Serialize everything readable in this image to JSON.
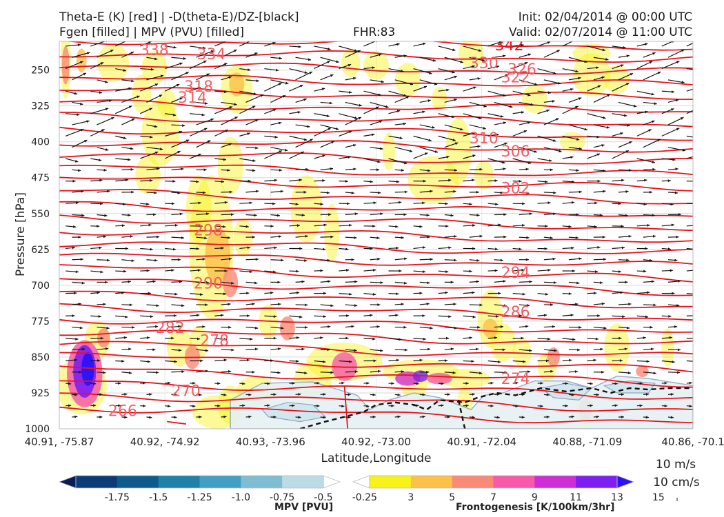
{
  "header": {
    "title_left_1": "Theta-E (K) [red] | -D(theta-E)/DZ-[black]",
    "title_left_2": "Fgen [filled] | MPV (PVU) [filled]",
    "fhr": "FHR:83",
    "init": "Init: 02/04/2014 @ 00:00 UTC",
    "valid": "Valid: 02/07/2014 @ 11:00 UTC"
  },
  "chart_data": {
    "type": "cross-section",
    "xlabel": "Latitude,Longitude",
    "ylabel": "Pressure [hPa]",
    "x_ticks": [
      "40.91, -75.87",
      "40.92, -74.92",
      "40.93, -73.96",
      "40.92, -73.00",
      "40.91, -72.04",
      "40.88, -71.09",
      "40.86, -70.1"
    ],
    "y_ticks": [
      250,
      325,
      400,
      475,
      550,
      625,
      700,
      775,
      850,
      925,
      1000
    ],
    "ylim": [
      1000,
      190
    ],
    "theta_e_contours": [
      {
        "label": 342,
        "at": [
          0.71,
          197
        ]
      },
      {
        "label": 338,
        "at": [
          0.15,
          207
        ]
      },
      {
        "label": 334,
        "at": [
          0.24,
          216
        ]
      },
      {
        "label": 330,
        "at": [
          0.67,
          235
        ]
      },
      {
        "label": 326,
        "at": [
          0.73,
          248
        ]
      },
      {
        "label": 322,
        "at": [
          0.72,
          264
        ]
      },
      {
        "label": 318,
        "at": [
          0.22,
          284
        ]
      },
      {
        "label": 314,
        "at": [
          0.21,
          307
        ]
      },
      {
        "label": 310,
        "at": [
          0.67,
          392
        ]
      },
      {
        "label": 306,
        "at": [
          0.72,
          419
        ]
      },
      {
        "label": 302,
        "at": [
          0.72,
          496
        ]
      },
      {
        "label": 298,
        "at": [
          0.235,
          584
        ]
      },
      {
        "label": 294,
        "at": [
          0.72,
          673
        ]
      },
      {
        "label": 290,
        "at": [
          0.235,
          695
        ]
      },
      {
        "label": 286,
        "at": [
          0.72,
          755
        ]
      },
      {
        "label": 282,
        "at": [
          0.175,
          788
        ]
      },
      {
        "label": 278,
        "at": [
          0.245,
          815
        ]
      },
      {
        "label": 274,
        "at": [
          0.72,
          895
        ]
      },
      {
        "label": 270,
        "at": [
          0.2,
          920
        ]
      },
      {
        "label": 266,
        "at": [
          0.1,
          962
        ]
      }
    ],
    "mpv_colorbar": {
      "label": "MPV [PVU]",
      "ticks": [
        "-1.75",
        "-1.5",
        "-1.25",
        "-1.0",
        "-0.75",
        "-0.5",
        "-0.25"
      ],
      "colors": [
        "#081d58",
        "#0c3c78",
        "#0e5a8c",
        "#1f80a8",
        "#419fc3",
        "#7fbdd3",
        "#bcdbe5",
        "#ffffff"
      ]
    },
    "fgen_colorbar": {
      "label": "Frontogenesis [K/100km/3hr]",
      "ticks": [
        "3",
        "5",
        "7",
        "9",
        "11",
        "13",
        "15"
      ],
      "colors": [
        "#ffffff",
        "#f7f21a",
        "#fbc14b",
        "#f98a78",
        "#f65aa8",
        "#cf2ed6",
        "#7d1ff1",
        "#2b12f7"
      ]
    }
  },
  "vector_scale": {
    "line1": "10 m/s",
    "line2": "10 cm/s"
  }
}
